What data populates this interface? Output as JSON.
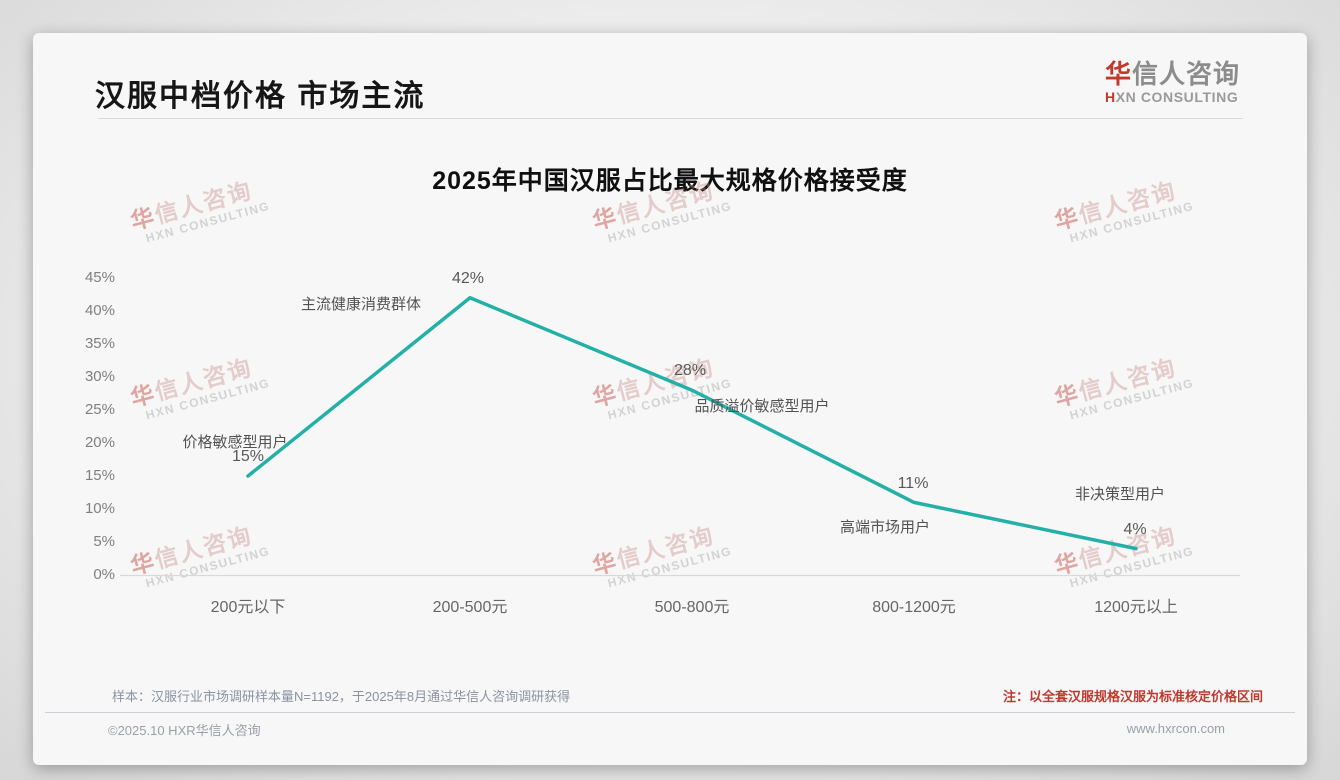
{
  "page": {
    "header": {
      "title": "汉服中档价格 市场主流",
      "logo_cn_accent": "华",
      "logo_cn_rest": "信人咨询",
      "logo_en_accent": "H",
      "logo_en_rest": "XN CONSULTING"
    },
    "footer": {
      "sample_note": "样本：汉服行业市场调研样本量N=1192，于2025年8月通过华信人咨询调研获得",
      "price_note": "注：以全套汉服规格汉服为标准核定价格区间",
      "copyright": "©2025.10 HXR华信人咨询",
      "website": "www.hxrcon.com"
    },
    "watermark": {
      "cn": "华信人咨询",
      "en": "HXN CONSULTING"
    }
  },
  "chart_data": {
    "type": "line",
    "title": "2025年中国汉服占比最大规格价格接受度",
    "categories": [
      "200元以下",
      "200-500元",
      "500-800元",
      "800-1200元",
      "1200元以上"
    ],
    "values": [
      15,
      42,
      28,
      11,
      4
    ],
    "value_labels": [
      "15%",
      "42%",
      "28%",
      "11%",
      "4%"
    ],
    "point_annotations": [
      "价格敏感型用户",
      "主流健康消费群体",
      "品质溢价敏感型用户",
      "高端市场用户",
      "非决策型用户"
    ],
    "y_ticks": [
      "45%",
      "40%",
      "35%",
      "30%",
      "25%",
      "20%",
      "15%",
      "10%",
      "5%",
      "0%"
    ],
    "ylim": [
      0,
      45
    ],
    "xlabel": "",
    "ylabel": "",
    "grid": false,
    "legend": false,
    "line_color": "#23b0a6",
    "axis_line_color": "#d9d9d9"
  }
}
